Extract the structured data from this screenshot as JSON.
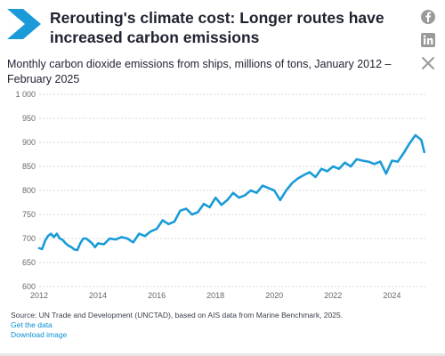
{
  "header": {
    "title": "Rerouting's climate cost: Longer routes have increased carbon emissions",
    "subtitle": "Monthly carbon dioxide emissions from ships, millions of tons, January 2012 – February 2025"
  },
  "social": {
    "icons": [
      "facebook-icon",
      "linkedin-icon",
      "x-icon"
    ]
  },
  "footer": {
    "source": "Source: UN Trade and Development (UNCTAD), based on AIS data from Marine Benchmark, 2025.",
    "get_data": "Get the data",
    "download": "Download image"
  },
  "colors": {
    "line": "#1a9bd7",
    "brand": "#1a9bd7",
    "link": "#0a8fd3",
    "grid": "#d9d9d9"
  },
  "chart_data": {
    "type": "line",
    "title": "Rerouting's climate cost: Longer routes have increased carbon emissions",
    "subtitle": "Monthly carbon dioxide emissions from ships, millions of tons, January 2012 – February 2025",
    "xlabel": "",
    "ylabel": "",
    "xlim": [
      2012.0,
      2025.2
    ],
    "ylim": [
      600,
      1000
    ],
    "x_ticks": [
      2012,
      2014,
      2016,
      2018,
      2020,
      2022,
      2024
    ],
    "y_ticks": [
      600,
      650,
      700,
      750,
      800,
      850,
      900,
      950,
      1000
    ],
    "y_tick_labels": [
      "600",
      "650",
      "700",
      "750",
      "800",
      "850",
      "900",
      "950",
      "1 000"
    ],
    "grid": "horizontal",
    "legend": "none",
    "series": [
      {
        "x": [
          2012.0,
          2012.1,
          2012.2,
          2012.3,
          2012.4,
          2012.5,
          2012.6,
          2012.7,
          2012.8,
          2012.9,
          2013.0,
          2013.1,
          2013.2,
          2013.3,
          2013.4,
          2013.5,
          2013.6,
          2013.7,
          2013.8,
          2013.9,
          2014.0,
          2014.2,
          2014.4,
          2014.6,
          2014.8,
          2015.0,
          2015.2,
          2015.4,
          2015.6,
          2015.8,
          2016.0,
          2016.2,
          2016.4,
          2016.6,
          2016.8,
          2017.0,
          2017.2,
          2017.4,
          2017.6,
          2017.8,
          2018.0,
          2018.2,
          2018.4,
          2018.6,
          2018.8,
          2019.0,
          2019.2,
          2019.4,
          2019.6,
          2019.8,
          2020.0,
          2020.2,
          2020.4,
          2020.6,
          2020.8,
          2021.0,
          2021.2,
          2021.4,
          2021.6,
          2021.8,
          2022.0,
          2022.2,
          2022.4,
          2022.6,
          2022.8,
          2023.0,
          2023.2,
          2023.4,
          2023.6,
          2023.8,
          2024.0,
          2024.2,
          2024.4,
          2024.6,
          2024.8,
          2025.0,
          2025.1
        ],
        "values": [
          680,
          678,
          695,
          705,
          710,
          703,
          710,
          700,
          697,
          690,
          685,
          682,
          677,
          676,
          690,
          700,
          700,
          695,
          690,
          682,
          690,
          688,
          700,
          698,
          703,
          700,
          692,
          710,
          705,
          715,
          720,
          738,
          730,
          735,
          758,
          762,
          750,
          755,
          772,
          765,
          785,
          770,
          780,
          795,
          785,
          790,
          800,
          795,
          810,
          805,
          800,
          780,
          800,
          815,
          825,
          832,
          838,
          828,
          845,
          840,
          850,
          845,
          858,
          850,
          865,
          862,
          860,
          855,
          860,
          835,
          862,
          860,
          878,
          898,
          915,
          905,
          880
        ]
      }
    ]
  }
}
